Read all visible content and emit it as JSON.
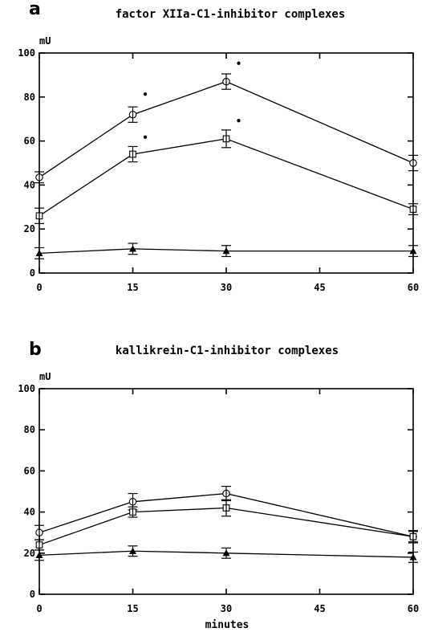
{
  "chart_data": [
    {
      "type": "line",
      "panel": "a",
      "title": "factor XIIa-C1-inhibitor complexes",
      "ylabel": "mU",
      "xlabel": "",
      "x": [
        0,
        15,
        30,
        60
      ],
      "xticks": [
        0,
        15,
        30,
        45,
        60
      ],
      "yticks": [
        0,
        20,
        40,
        60,
        80,
        100
      ],
      "xlim": [
        0,
        60
      ],
      "ylim": [
        0,
        100
      ],
      "grid": false,
      "series": [
        {
          "marker": "circle",
          "values": [
            43.5,
            72,
            87,
            50
          ],
          "errors": [
            2.5,
            3.5,
            3.5,
            3.5
          ]
        },
        {
          "marker": "square",
          "values": [
            26,
            54,
            61,
            29
          ],
          "errors": [
            3.5,
            3.5,
            4,
            2.5
          ]
        },
        {
          "marker": "triangle",
          "values": [
            9,
            11,
            10,
            10
          ],
          "errors": [
            2.5,
            2.5,
            2.5,
            2.5
          ]
        }
      ],
      "significance": [
        {
          "x": 17,
          "y": 81,
          "label": "•"
        },
        {
          "x": 32,
          "y": 95,
          "label": "•"
        },
        {
          "x": 17,
          "y": 61.5,
          "label": "•"
        },
        {
          "x": 32,
          "y": 69,
          "label": "•"
        }
      ]
    },
    {
      "type": "line",
      "panel": "b",
      "title": "kallikrein-C1-inhibitor complexes",
      "ylabel": "mU",
      "xlabel": "minutes",
      "x": [
        0,
        15,
        30,
        60
      ],
      "xticks": [
        0,
        15,
        30,
        45,
        60
      ],
      "yticks": [
        0,
        20,
        40,
        60,
        80,
        100
      ],
      "xlim": [
        0,
        60
      ],
      "ylim": [
        0,
        100
      ],
      "grid": false,
      "series": [
        {
          "marker": "circle",
          "values": [
            30,
            45,
            49,
            28
          ],
          "errors": [
            3.5,
            4,
            3.5,
            3
          ]
        },
        {
          "marker": "square",
          "values": [
            24,
            40,
            42,
            28
          ],
          "errors": [
            2.5,
            2.5,
            4,
            2.5
          ]
        },
        {
          "marker": "triangle",
          "values": [
            19,
            21,
            20,
            18
          ],
          "errors": [
            2.5,
            2.5,
            2.5,
            2.5
          ]
        }
      ],
      "significance": []
    }
  ]
}
